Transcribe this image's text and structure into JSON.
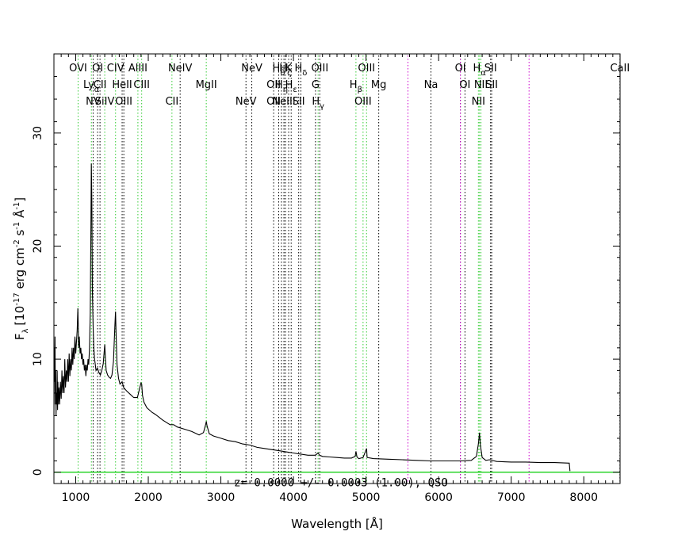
{
  "chart_data": {
    "type": "line",
    "xlabel": "Wavelength [Å]",
    "ylabel": "F",
    "ylabel_sub": "λ",
    "ylabel_unit": "[10",
    "ylabel_exp": "-17",
    "ylabel_unit2": " erg cm",
    "ylabel_exp2": "-2",
    "ylabel_unit3": " s",
    "ylabel_exp3": "-1",
    "ylabel_unit4": " Å",
    "ylabel_exp4": "-1",
    "ylabel_unit5": "]",
    "annotation": "z= 0.0000 +/- 0.0003 (1.00), QSO",
    "xlim": [
      700,
      8500
    ],
    "ylim": [
      -1,
      37
    ],
    "xticks": [
      1000,
      2000,
      3000,
      4000,
      5000,
      6000,
      7000,
      8000
    ],
    "yticks": [
      0,
      10,
      20,
      30
    ],
    "xtick_labels": [
      "1000",
      "2000",
      "3000",
      "4000",
      "5000",
      "6000",
      "7000",
      "8000"
    ],
    "ytick_labels": [
      "0",
      "10",
      "20",
      "30"
    ],
    "colors": {
      "spectrum": "#000000",
      "baseline": "#00cc00",
      "green_line": "#33cc33",
      "black_line": "#000000",
      "magenta_line": "#cc00cc"
    },
    "series": [
      {
        "points": [
          [
            700,
            5
          ],
          [
            705,
            11
          ],
          [
            710,
            8
          ],
          [
            715,
            12
          ],
          [
            720,
            6
          ],
          [
            725,
            9
          ],
          [
            730,
            5
          ],
          [
            735,
            7
          ],
          [
            740,
            6
          ],
          [
            745,
            9
          ],
          [
            750,
            5.5
          ],
          [
            755,
            8
          ],
          [
            760,
            6
          ],
          [
            770,
            7.5
          ],
          [
            780,
            6
          ],
          [
            790,
            8
          ],
          [
            800,
            6.5
          ],
          [
            810,
            9
          ],
          [
            820,
            7
          ],
          [
            830,
            8.5
          ],
          [
            840,
            7
          ],
          [
            850,
            10
          ],
          [
            860,
            7.5
          ],
          [
            870,
            9
          ],
          [
            880,
            8
          ],
          [
            890,
            10
          ],
          [
            900,
            8
          ],
          [
            910,
            10.5
          ],
          [
            920,
            8.5
          ],
          [
            930,
            10
          ],
          [
            940,
            9
          ],
          [
            950,
            11
          ],
          [
            960,
            9.5
          ],
          [
            970,
            11
          ],
          [
            980,
            10
          ],
          [
            990,
            12
          ],
          [
            1000,
            10.5
          ],
          [
            1010,
            11.5
          ],
          [
            1020,
            12.5
          ],
          [
            1030,
            14.5
          ],
          [
            1035,
            13
          ],
          [
            1040,
            11
          ],
          [
            1050,
            12
          ],
          [
            1060,
            10.5
          ],
          [
            1070,
            11
          ],
          [
            1080,
            10
          ],
          [
            1090,
            10.5
          ],
          [
            1100,
            9.5
          ],
          [
            1110,
            10
          ],
          [
            1120,
            9
          ],
          [
            1130,
            9.5
          ],
          [
            1140,
            8.5
          ],
          [
            1150,
            9.5
          ],
          [
            1160,
            9
          ],
          [
            1170,
            10
          ],
          [
            1180,
            9.5
          ],
          [
            1190,
            11
          ],
          [
            1200,
            14
          ],
          [
            1210,
            22
          ],
          [
            1216,
            27.3
          ],
          [
            1222,
            24
          ],
          [
            1230,
            16
          ],
          [
            1240,
            13
          ],
          [
            1250,
            11
          ],
          [
            1260,
            10
          ],
          [
            1270,
            9.5
          ],
          [
            1280,
            9
          ],
          [
            1300,
            9.2
          ],
          [
            1320,
            8.8
          ],
          [
            1340,
            8.6
          ],
          [
            1360,
            9
          ],
          [
            1380,
            9.6
          ],
          [
            1400,
            11.3
          ],
          [
            1410,
            10
          ],
          [
            1420,
            9
          ],
          [
            1440,
            8.6
          ],
          [
            1460,
            8.4
          ],
          [
            1480,
            8.3
          ],
          [
            1500,
            8.6
          ],
          [
            1520,
            9.8
          ],
          [
            1540,
            13
          ],
          [
            1549,
            14.2
          ],
          [
            1558,
            12
          ],
          [
            1570,
            9.5
          ],
          [
            1590,
            8.3
          ],
          [
            1610,
            7.8
          ],
          [
            1640,
            8
          ],
          [
            1660,
            7.5
          ],
          [
            1700,
            7.2
          ],
          [
            1750,
            6.9
          ],
          [
            1800,
            6.6
          ],
          [
            1850,
            6.6
          ],
          [
            1880,
            7.4
          ],
          [
            1900,
            7.9
          ],
          [
            1909,
            7.8
          ],
          [
            1920,
            6.8
          ],
          [
            1940,
            6.2
          ],
          [
            1980,
            5.7
          ],
          [
            2050,
            5.3
          ],
          [
            2100,
            5.1
          ],
          [
            2200,
            4.6
          ],
          [
            2300,
            4.2
          ],
          [
            2350,
            4.2
          ],
          [
            2400,
            4
          ],
          [
            2500,
            3.8
          ],
          [
            2600,
            3.6
          ],
          [
            2700,
            3.3
          ],
          [
            2760,
            3.5
          ],
          [
            2790,
            4.2
          ],
          [
            2800,
            4.5
          ],
          [
            2810,
            4.1
          ],
          [
            2840,
            3.4
          ],
          [
            2900,
            3.2
          ],
          [
            3000,
            3
          ],
          [
            3100,
            2.8
          ],
          [
            3200,
            2.7
          ],
          [
            3300,
            2.5
          ],
          [
            3400,
            2.4
          ],
          [
            3500,
            2.2
          ],
          [
            3600,
            2.1
          ],
          [
            3700,
            2
          ],
          [
            3800,
            1.9
          ],
          [
            3900,
            1.8
          ],
          [
            4000,
            1.7
          ],
          [
            4100,
            1.6
          ],
          [
            4200,
            1.5
          ],
          [
            4300,
            1.5
          ],
          [
            4340,
            1.7
          ],
          [
            4360,
            1.5
          ],
          [
            4400,
            1.4
          ],
          [
            4500,
            1.35
          ],
          [
            4600,
            1.3
          ],
          [
            4700,
            1.25
          ],
          [
            4800,
            1.25
          ],
          [
            4850,
            1.4
          ],
          [
            4861,
            1.85
          ],
          [
            4875,
            1.35
          ],
          [
            4900,
            1.2
          ],
          [
            4959,
            1.3
          ],
          [
            5007,
            2.1
          ],
          [
            5015,
            1.3
          ],
          [
            5100,
            1.2
          ],
          [
            5300,
            1.15
          ],
          [
            5500,
            1.1
          ],
          [
            5700,
            1.05
          ],
          [
            5900,
            1
          ],
          [
            6100,
            1
          ],
          [
            6300,
            1
          ],
          [
            6450,
            1.05
          ],
          [
            6520,
            1.4
          ],
          [
            6550,
            2.6
          ],
          [
            6563,
            3.5
          ],
          [
            6575,
            2.4
          ],
          [
            6600,
            1.3
          ],
          [
            6650,
            1.05
          ],
          [
            6700,
            1.1
          ],
          [
            6800,
            0.95
          ],
          [
            7000,
            0.9
          ],
          [
            7200,
            0.9
          ],
          [
            7400,
            0.85
          ],
          [
            7600,
            0.85
          ],
          [
            7800,
            0.8
          ],
          [
            7810,
            0.1
          ]
        ]
      }
    ],
    "baseline": [
      [
        700,
        0
      ],
      [
        8500,
        0
      ]
    ],
    "lines": [
      {
        "w": 1033,
        "c": "green",
        "labels": [
          "OVI"
        ]
      },
      {
        "w": 1216,
        "c": "green",
        "labels": [
          "",
          "Ly_α_"
        ]
      },
      {
        "w": 1240,
        "c": "black",
        "labels": [
          "",
          "",
          "NV"
        ]
      },
      {
        "w": 1302,
        "c": "black",
        "labels": [
          "OI"
        ]
      },
      {
        "w": 1335,
        "c": "black",
        "labels": [
          "",
          "CII"
        ]
      },
      {
        "w": 1400,
        "c": "green",
        "labels": [
          "",
          "",
          "SiIV"
        ]
      },
      {
        "w": 1549,
        "c": "green",
        "labels": [
          "CIV"
        ]
      },
      {
        "w": 1640,
        "c": "black",
        "labels": [
          "",
          "HeII"
        ]
      },
      {
        "w": 1663,
        "c": "black",
        "labels": [
          "",
          "",
          "OIII"
        ]
      },
      {
        "w": 1857,
        "c": "green",
        "labels": [
          "AlIII"
        ]
      },
      {
        "w": 1909,
        "c": "green",
        "labels": [
          "",
          "CIII"
        ]
      },
      {
        "w": 2326,
        "c": "green",
        "labels": [
          "",
          "",
          "CII"
        ]
      },
      {
        "w": 2439,
        "c": "black",
        "labels": [
          "NeIV"
        ]
      },
      {
        "w": 2799,
        "c": "green",
        "labels": [
          "",
          "MgII"
        ]
      },
      {
        "w": 3346,
        "c": "black",
        "labels": [
          "",
          "",
          "NeV"
        ]
      },
      {
        "w": 3426,
        "c": "black",
        "labels": [
          "NeV"
        ]
      },
      {
        "w": 3727,
        "c": "black",
        "labels": [
          "",
          "OII",
          "OII"
        ]
      },
      {
        "w": 3797,
        "c": "black",
        "labels": [
          "H_θ_"
        ]
      },
      {
        "w": 3835,
        "c": "black",
        "labels": [
          "",
          "H_η_"
        ]
      },
      {
        "w": 3869,
        "c": "black",
        "labels": [
          "",
          "",
          "NeIII"
        ]
      },
      {
        "w": 3889,
        "c": "black",
        "labels": [
          "H_ζ_"
        ]
      },
      {
        "w": 3934,
        "c": "black",
        "labels": [
          "K"
        ]
      },
      {
        "w": 3969,
        "c": "black",
        "labels": [
          "",
          "H_ε_"
        ]
      },
      {
        "w": 4072,
        "c": "black",
        "labels": [
          "",
          "",
          "SII"
        ]
      },
      {
        "w": 4102,
        "c": "black",
        "labels": [
          "H_δ_"
        ]
      },
      {
        "w": 4304,
        "c": "black",
        "labels": [
          "",
          "G"
        ]
      },
      {
        "w": 4340,
        "c": "green",
        "labels": [
          "",
          "",
          "H_γ_"
        ]
      },
      {
        "w": 4363,
        "c": "black",
        "labels": [
          "OIII"
        ]
      },
      {
        "w": 4861,
        "c": "green",
        "labels": [
          "",
          "H_β_"
        ]
      },
      {
        "w": 4959,
        "c": "green",
        "labels": [
          "",
          "",
          "OIII"
        ]
      },
      {
        "w": 5007,
        "c": "green",
        "labels": [
          "OIII"
        ]
      },
      {
        "w": 5175,
        "c": "black",
        "labels": [
          "",
          "Mg"
        ]
      },
      {
        "w": 5577,
        "c": "magenta",
        "labels": []
      },
      {
        "w": 5894,
        "c": "black",
        "labels": [
          "",
          "Na"
        ]
      },
      {
        "w": 6300,
        "c": "black",
        "labels": [
          "OI"
        ]
      },
      {
        "w": 6363,
        "c": "black",
        "labels": [
          "",
          "OI"
        ]
      },
      {
        "w": 6548,
        "c": "green",
        "labels": [
          "",
          "",
          "NII"
        ]
      },
      {
        "w": 6563,
        "c": "green",
        "labels": [
          "H_α_"
        ]
      },
      {
        "w": 6583,
        "c": "green",
        "labels": [
          "",
          "NII"
        ]
      },
      {
        "w": 6716,
        "c": "black",
        "labels": [
          "SII"
        ]
      },
      {
        "w": 6731,
        "c": "black",
        "labels": [
          "",
          "SII"
        ]
      },
      {
        "w": 6300,
        "c": "magenta",
        "labels": []
      },
      {
        "w": 7246,
        "c": "magenta",
        "labels": []
      },
      {
        "w": 8498,
        "c": "black",
        "labels": [
          "CaII"
        ]
      }
    ]
  }
}
